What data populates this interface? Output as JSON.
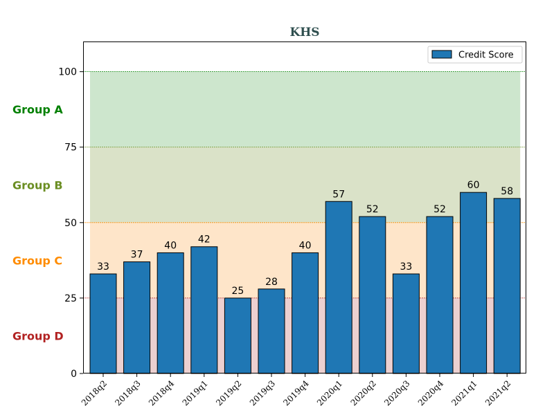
{
  "chart_data": {
    "type": "bar",
    "title": "KHS",
    "categories": [
      "2018q2",
      "2018q3",
      "2018q4",
      "2019q1",
      "2019q2",
      "2019q3",
      "2019q4",
      "2020q1",
      "2020q2",
      "2020q3",
      "2020q4",
      "2021q1",
      "2021q2"
    ],
    "series": [
      {
        "name": "Credit Score",
        "values": [
          33,
          37,
          40,
          42,
          25,
          28,
          40,
          57,
          52,
          33,
          52,
          60,
          58
        ],
        "color": "#1f77b4"
      }
    ],
    "ylim": [
      0,
      110
    ],
    "yticks": [
      0,
      25,
      50,
      75,
      100
    ],
    "xlabel": "",
    "ylabel": "",
    "legend": {
      "entries": [
        "Credit Score"
      ],
      "position": "top-right"
    },
    "bands": [
      {
        "label": "Group A",
        "range": [
          75,
          100
        ],
        "color": "#008000",
        "fill": "#cde6cd"
      },
      {
        "label": "Group B",
        "range": [
          50,
          75
        ],
        "color": "#6b8e23",
        "fill": "#dae2c8"
      },
      {
        "label": "Group C",
        "range": [
          25,
          50
        ],
        "color": "#ff8c00",
        "fill": "#fee5c9"
      },
      {
        "label": "Group D",
        "range": [
          0,
          25
        ],
        "color": "#b22222",
        "fill": "#ecd0d0"
      }
    ],
    "title_color": "#2f4f4f"
  }
}
